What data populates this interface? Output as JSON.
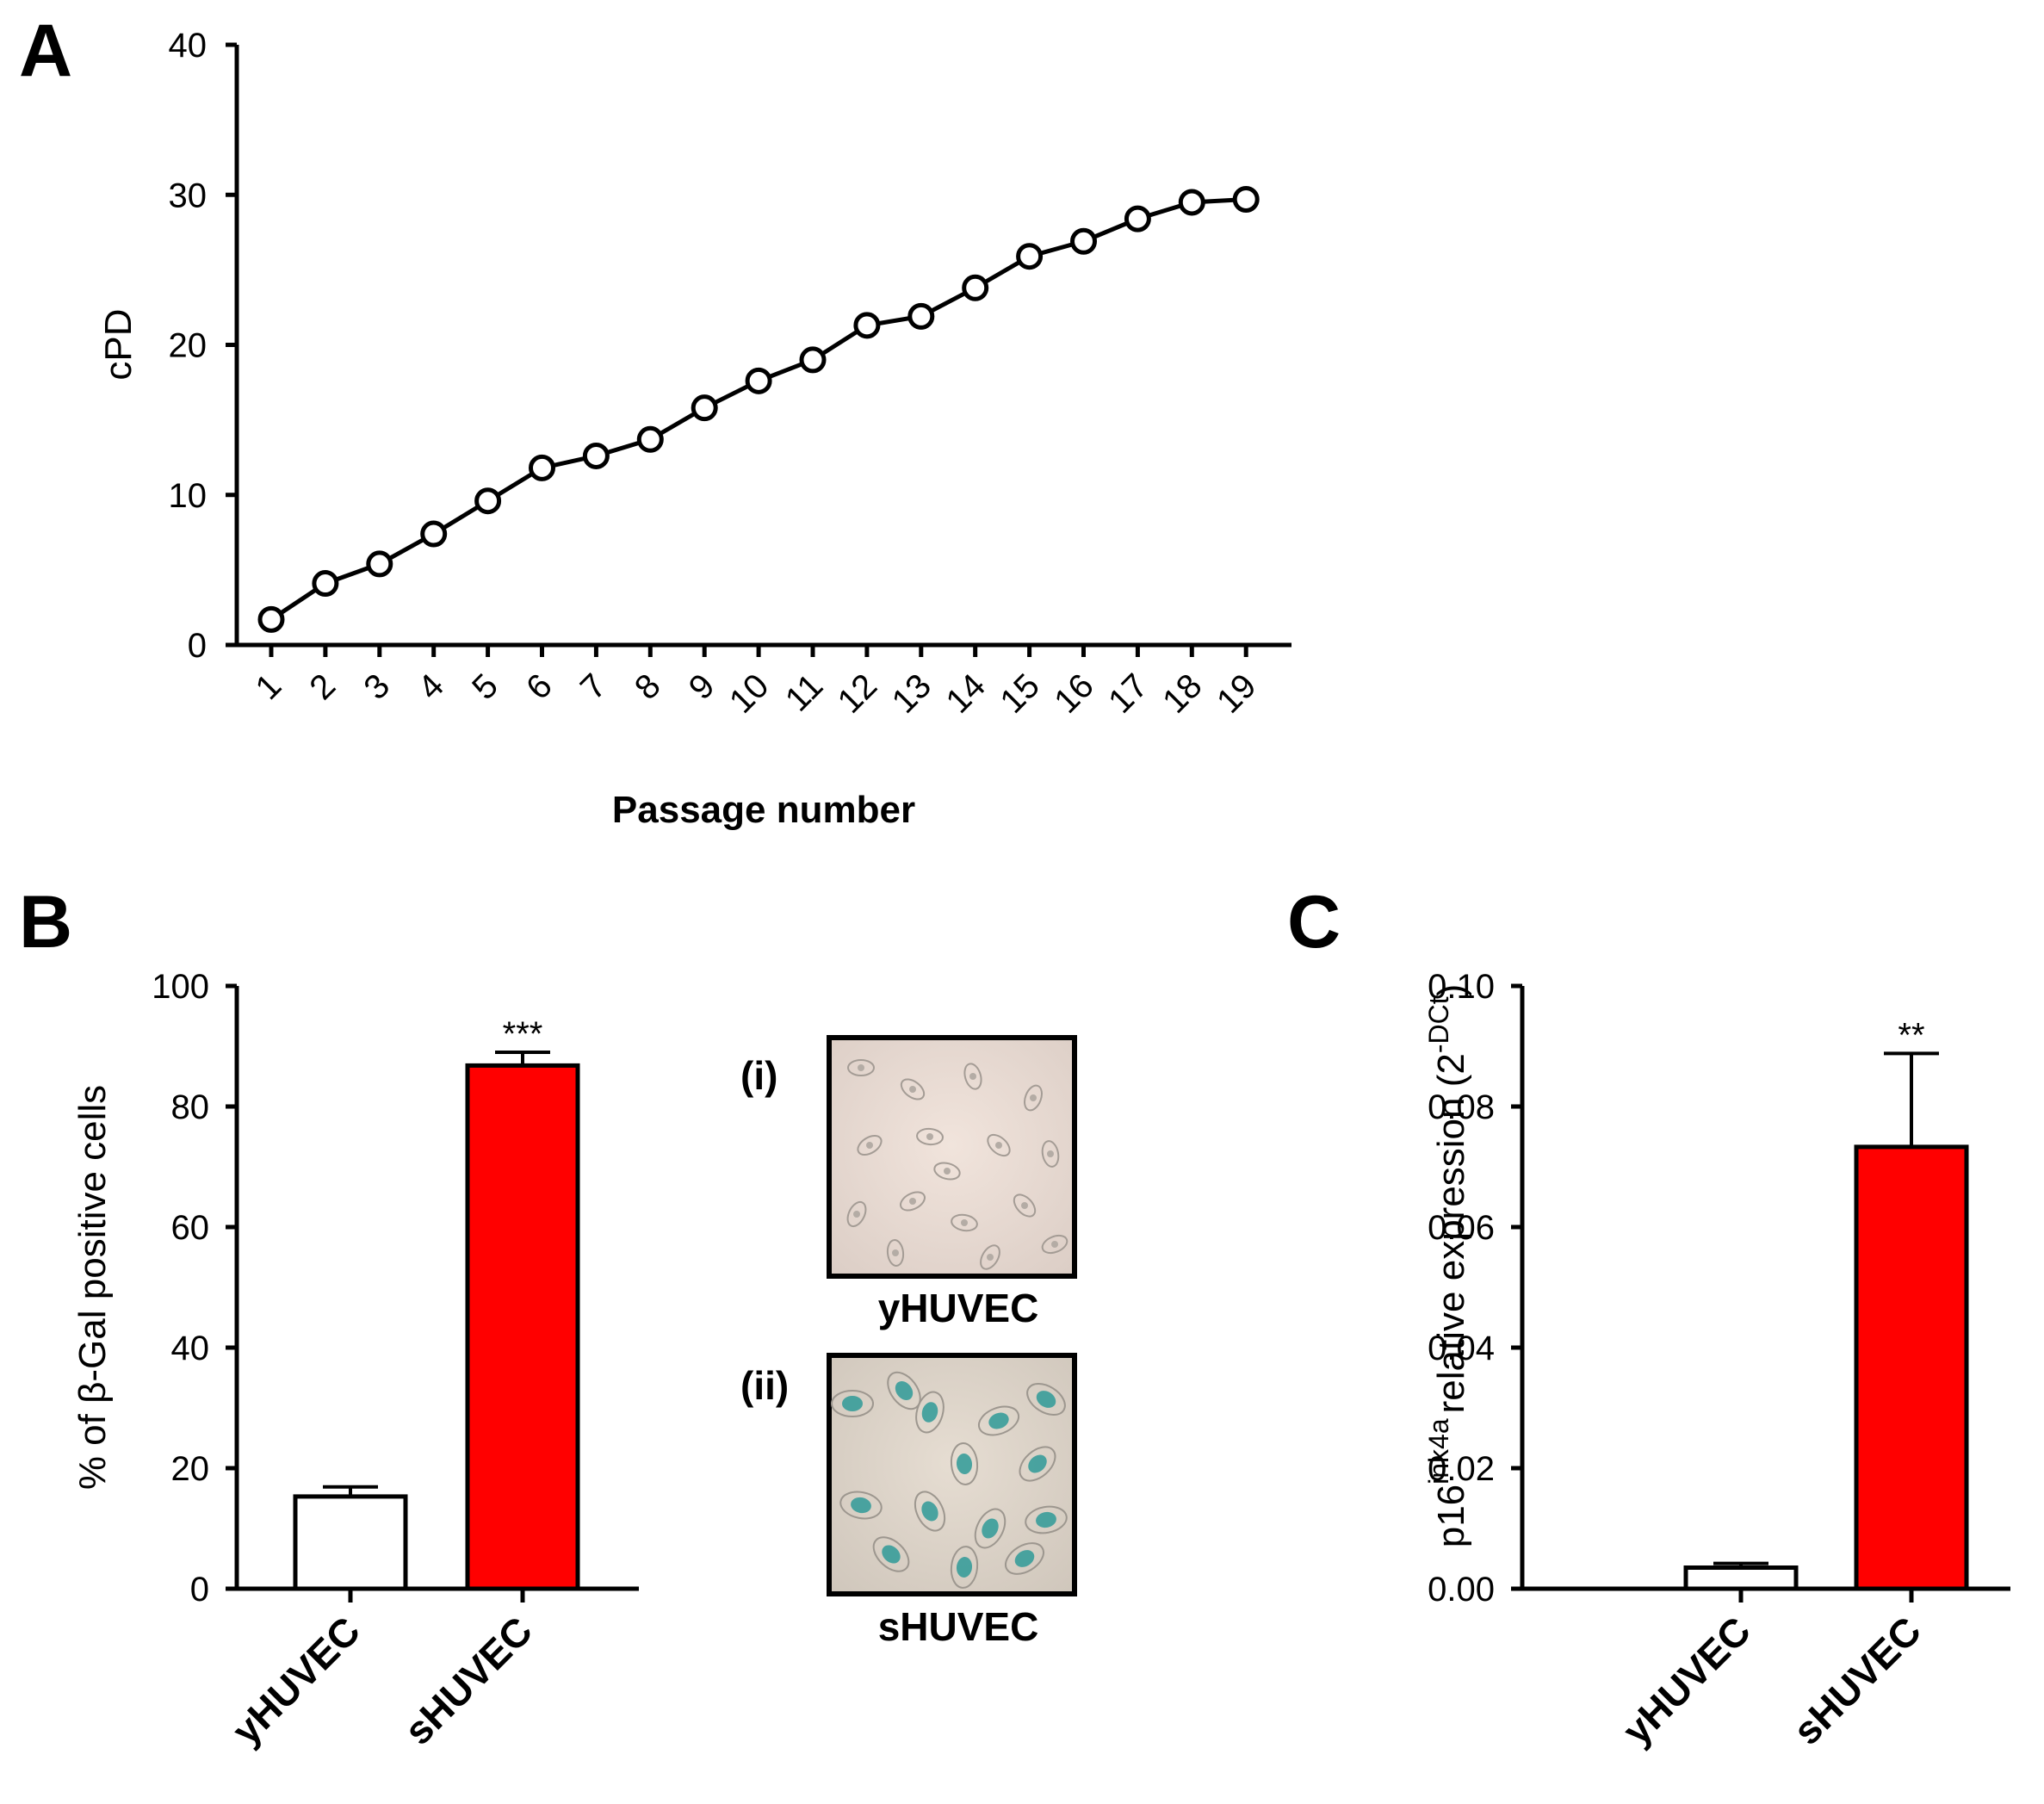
{
  "figure": {
    "panels": [
      "A",
      "B",
      "C"
    ],
    "micrograph_labels": {
      "i": "(i)",
      "ii": "(ii)",
      "i_caption": "yHUVEC",
      "ii_caption": "sHUVEC"
    }
  },
  "colors": {
    "axis": "#000000",
    "young_bar": "#ffffff",
    "senescent_bar": "#ff0000",
    "stain_blue": "#2f9a98"
  },
  "chart_data": [
    {
      "id": "A",
      "type": "line",
      "title": "",
      "xlabel": "Passage number",
      "ylabel": "cPD",
      "categories": [
        "1",
        "2",
        "3",
        "4",
        "5",
        "6",
        "7",
        "8",
        "9",
        "10",
        "11",
        "12",
        "13",
        "14",
        "15",
        "16",
        "17",
        "18",
        "19"
      ],
      "values": [
        1.7,
        4.1,
        5.4,
        7.4,
        9.6,
        11.8,
        12.6,
        13.7,
        15.8,
        17.6,
        19.0,
        21.3,
        21.9,
        23.8,
        25.9,
        26.9,
        28.4,
        29.5,
        29.7
      ],
      "ylim": [
        0,
        40
      ],
      "yticks": [
        0,
        10,
        20,
        30,
        40
      ],
      "grid": false,
      "marker": "open-circle"
    },
    {
      "id": "B",
      "type": "bar",
      "title": "",
      "xlabel": "",
      "ylabel": "% of β-Gal positive cells",
      "categories": [
        "yHUVEC",
        "sHUVEC"
      ],
      "values": [
        15.3,
        86.8
      ],
      "errors": [
        1.6,
        2.2
      ],
      "significance": [
        "",
        "***"
      ],
      "ylim": [
        0,
        100
      ],
      "yticks": [
        0,
        20,
        40,
        60,
        80,
        100
      ],
      "grid": false
    },
    {
      "id": "C",
      "type": "bar",
      "title": "",
      "xlabel": "",
      "ylabel_main": "p16",
      "ylabel_super": "ink4a",
      "ylabel_rest": "relative expression (2",
      "ylabel_exp": "-DCt",
      "ylabel_close": ")",
      "categories": [
        "yHUVEC",
        "sHUVEC"
      ],
      "values": [
        0.0035,
        0.0733
      ],
      "errors": [
        0.0007,
        0.0155
      ],
      "significance": [
        "",
        "**"
      ],
      "ylim": [
        0,
        0.1
      ],
      "yticks": [
        "0.00",
        "0.02",
        "0.04",
        "0.06",
        "0.08",
        "0.10"
      ],
      "grid": false
    }
  ]
}
